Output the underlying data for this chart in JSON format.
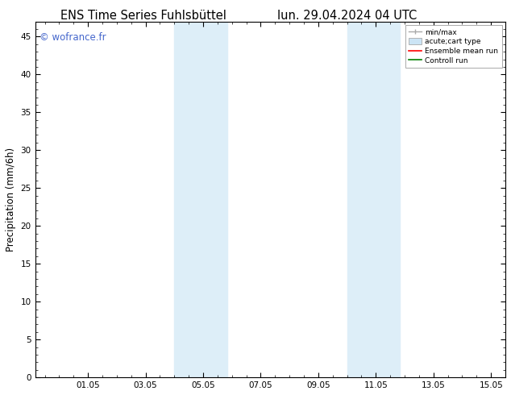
{
  "title_left": "ENS Time Series Fuhlsbüttel",
  "title_right": "lun. 29.04.2024 04 UTC",
  "ylabel": "Precipitation (mm/6h)",
  "watermark": "© wofrance.fr",
  "watermark_color": "#4466cc",
  "ymin": 0,
  "ymax": 47,
  "yticks": [
    0,
    5,
    10,
    15,
    20,
    25,
    30,
    35,
    40,
    45
  ],
  "xtick_labels": [
    "01.05",
    "03.05",
    "05.05",
    "07.05",
    "09.05",
    "11.05",
    "13.05",
    "15.05"
  ],
  "xtick_positions": [
    2.0,
    4.0,
    6.0,
    8.0,
    10.0,
    12.0,
    14.0,
    16.0
  ],
  "xmin": 0.167,
  "xmax": 16.5,
  "shade_bands": [
    {
      "xstart": 5.0,
      "xend": 6.833,
      "color": "#ddeef8"
    },
    {
      "xstart": 11.0,
      "xend": 12.833,
      "color": "#ddeef8"
    }
  ],
  "background_color": "#ffffff",
  "plot_bg_color": "#ffffff",
  "legend_minmax_color": "#aaaaaa",
  "legend_acute_facecolor": "#cce4f5",
  "legend_acute_edgecolor": "#aaaaaa",
  "legend_ens_color": "#ff0000",
  "legend_ctrl_color": "#008000",
  "tick_fontsize": 7.5,
  "label_fontsize": 8.5,
  "title_fontsize": 10.5
}
